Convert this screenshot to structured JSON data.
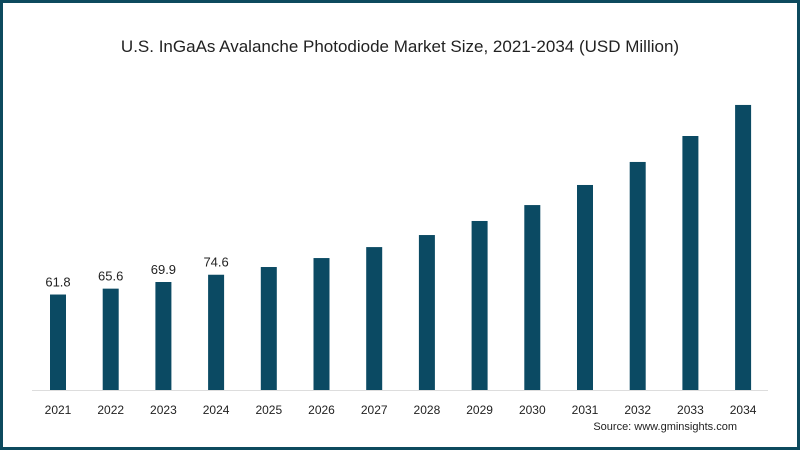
{
  "chart_data": {
    "type": "bar",
    "title": "U.S. InGaAs Avalanche Photodiode Market Size, 2021-2034 (USD Million)",
    "categories": [
      "2021",
      "2022",
      "2023",
      "2024",
      "2025",
      "2026",
      "2027",
      "2028",
      "2029",
      "2030",
      "2031",
      "2032",
      "2033",
      "2034"
    ],
    "values": [
      61.8,
      65.6,
      69.9,
      74.6,
      79.6,
      85.4,
      92.5,
      100.3,
      109.4,
      119.7,
      132.7,
      147.6,
      164.4,
      184.5
    ],
    "data_labels": [
      "61.8",
      "65.6",
      "69.9",
      "74.6",
      "",
      "",
      "",
      "",
      "",
      "",
      "",
      "",
      "",
      ""
    ],
    "xlabel": "",
    "ylabel": "",
    "ylim": [
      0,
      190
    ],
    "grid": false,
    "bar_color": "#0b4a63",
    "source": "Source: www.gminsights.com"
  }
}
